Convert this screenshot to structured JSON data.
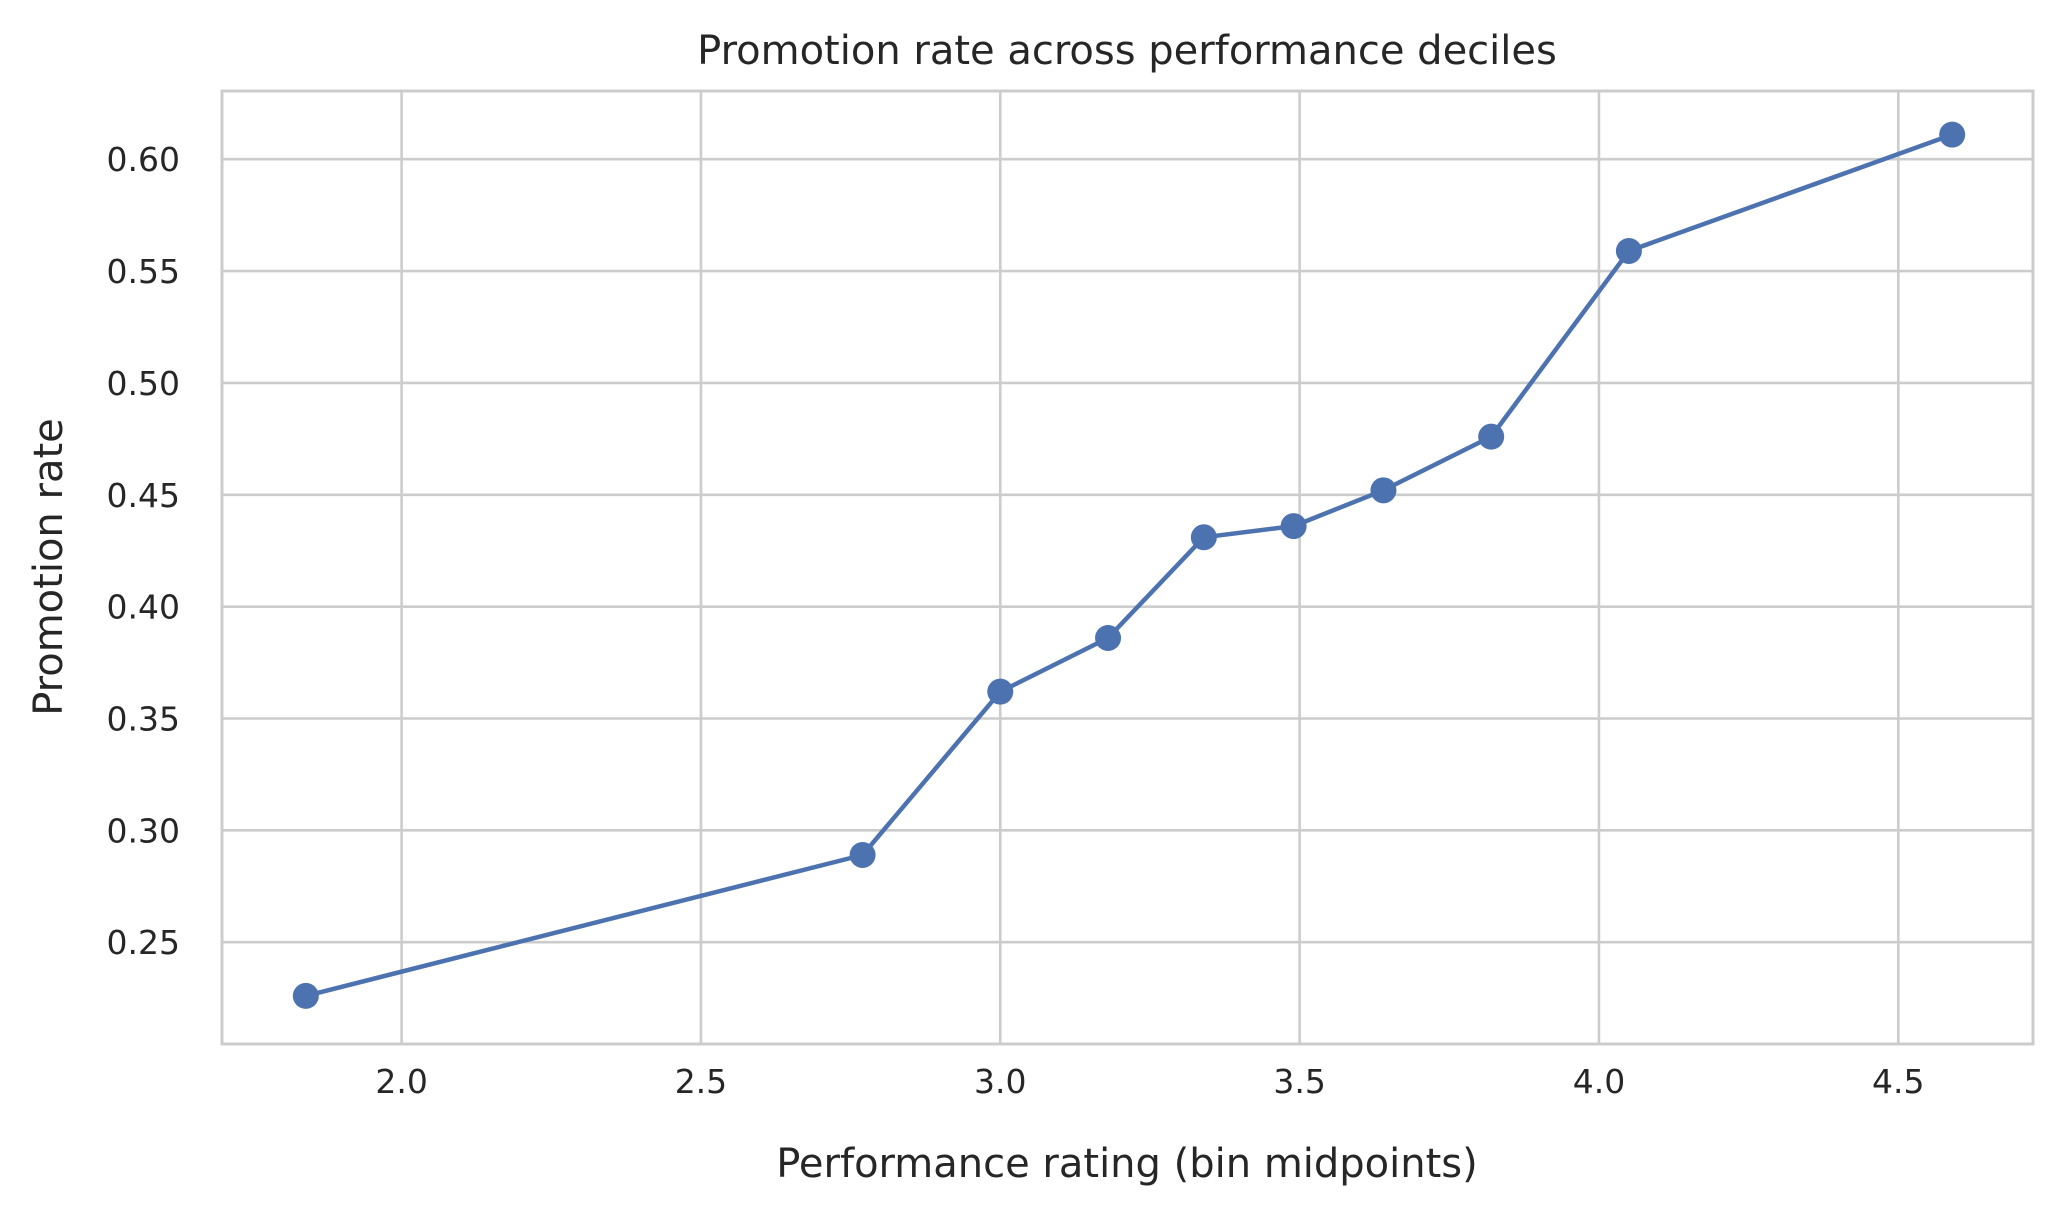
{
  "chart_data": {
    "type": "line",
    "title": "Promotion rate across performance deciles",
    "xlabel": "Performance rating (bin midpoints)",
    "ylabel": "Promotion rate",
    "xlim": [
      1.7,
      4.725
    ],
    "ylim": [
      0.2045,
      0.6305
    ],
    "xticks": [
      2.0,
      2.5,
      3.0,
      3.5,
      4.0,
      4.5
    ],
    "xtick_labels": [
      "2.0",
      "2.5",
      "3.0",
      "3.5",
      "4.0",
      "4.5"
    ],
    "yticks": [
      0.25,
      0.3,
      0.35,
      0.4,
      0.45,
      0.5,
      0.55,
      0.6
    ],
    "ytick_labels": [
      "0.25",
      "0.30",
      "0.35",
      "0.40",
      "0.45",
      "0.50",
      "0.55",
      "0.60"
    ],
    "grid": true,
    "legend": "none",
    "color": "#4c72b0",
    "series": [
      {
        "x": [
          1.84,
          2.77,
          3.0,
          3.18,
          3.34,
          3.49,
          3.64,
          3.82,
          4.05,
          4.59
        ],
        "y": [
          0.226,
          0.289,
          0.362,
          0.386,
          0.431,
          0.436,
          0.452,
          0.476,
          0.559,
          0.611
        ]
      }
    ]
  }
}
